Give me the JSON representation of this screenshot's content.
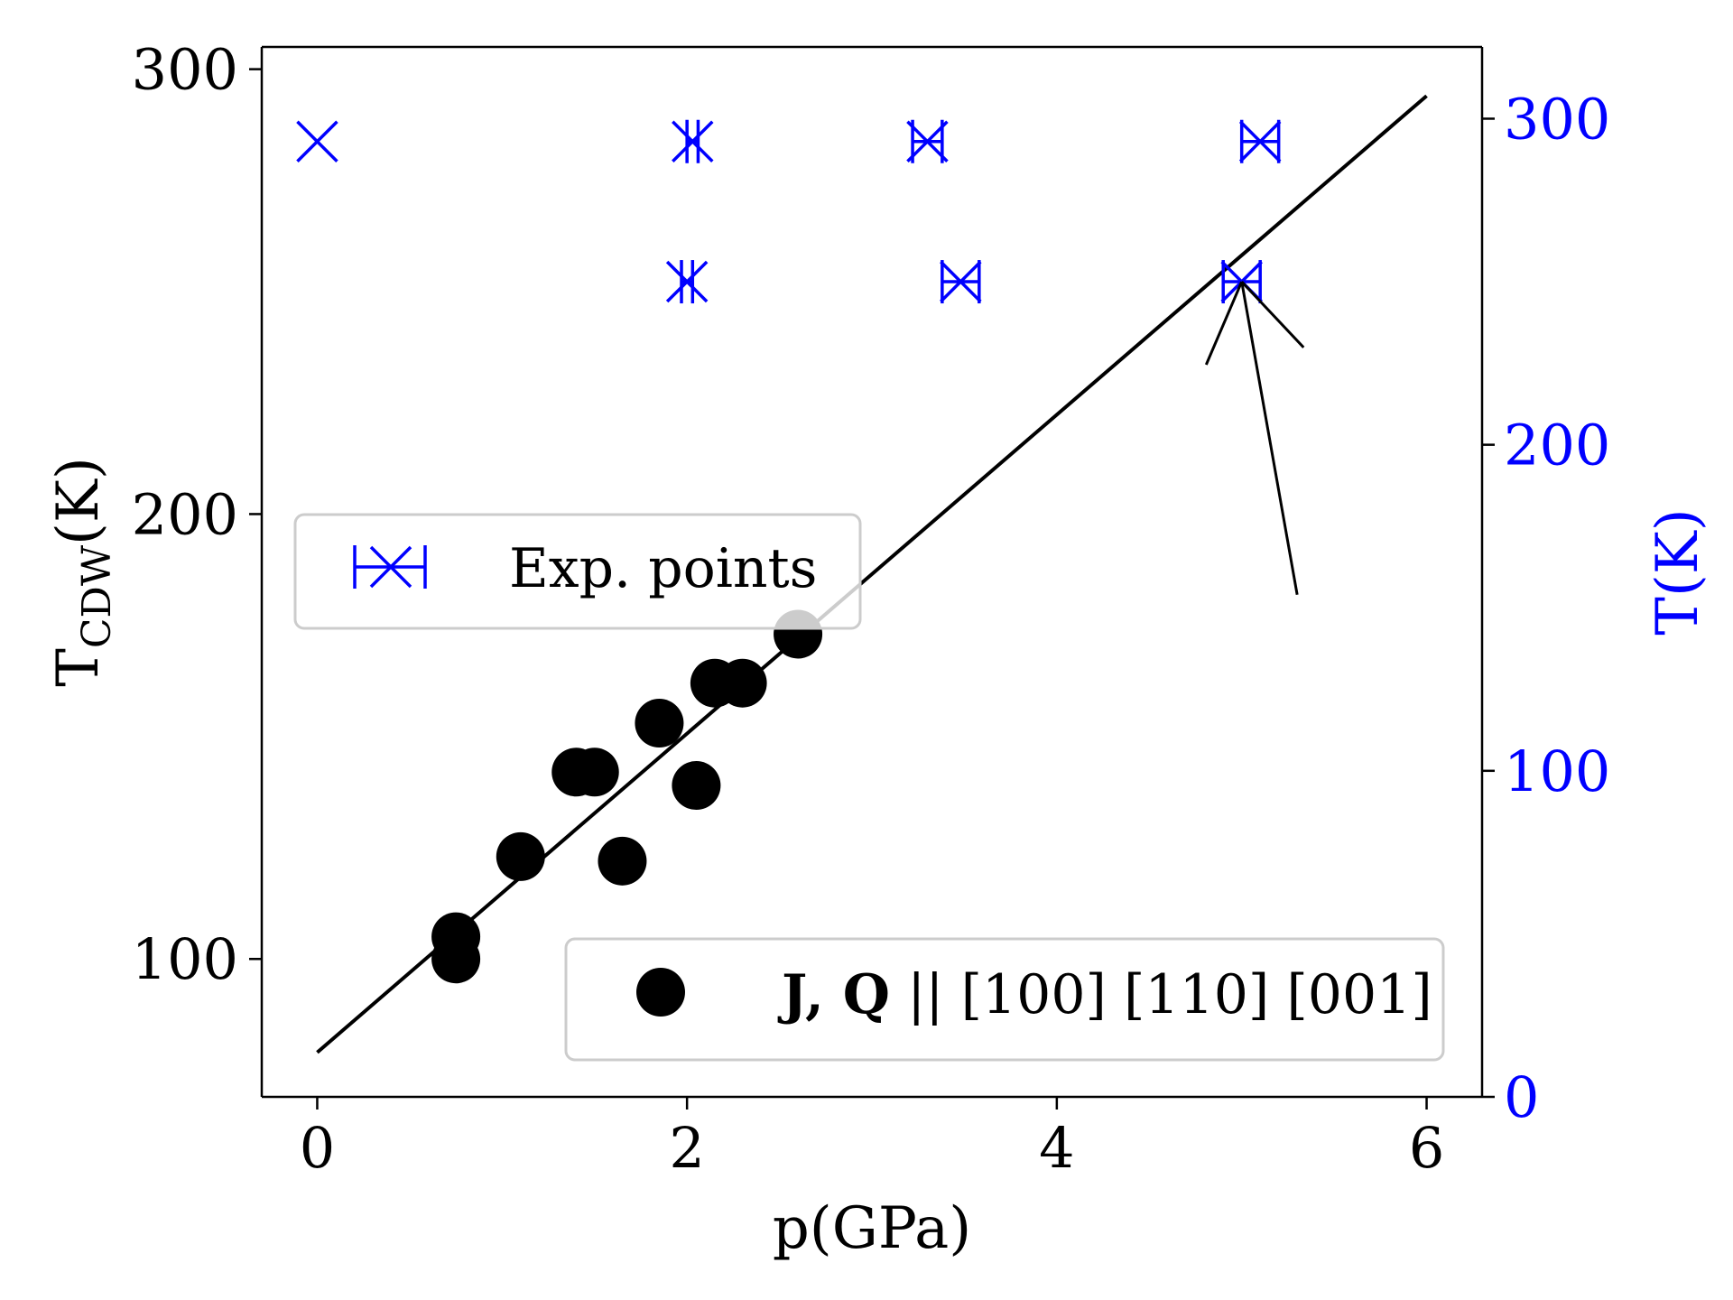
{
  "chart_data": {
    "type": "scatter",
    "x_axis": {
      "label": "p(GPa)",
      "range": [
        -0.3,
        6.3
      ],
      "ticks": [
        0,
        2,
        4,
        6
      ]
    },
    "y_axis_left": {
      "label_main": "T",
      "label_sub": "CDW",
      "label_unit": "(K)",
      "range": [
        69,
        305
      ],
      "ticks": [
        100,
        200,
        300
      ]
    },
    "y_axis_right": {
      "label": "T(K)",
      "range": [
        0,
        322
      ],
      "ticks": [
        0,
        100,
        200,
        300
      ],
      "color": "#0000ff"
    },
    "series": [
      {
        "name": "J, Q || [100] [110] [001]",
        "name_bold_part": "J, Q",
        "name_rest": " || [100] [110] [001]",
        "axis": "left",
        "color": "#000000",
        "marker": "circle",
        "points": [
          {
            "x": 0.75,
            "y": 100
          },
          {
            "x": 0.75,
            "y": 105
          },
          {
            "x": 1.1,
            "y": 123
          },
          {
            "x": 1.4,
            "y": 142
          },
          {
            "x": 1.5,
            "y": 142
          },
          {
            "x": 1.65,
            "y": 122
          },
          {
            "x": 1.85,
            "y": 153
          },
          {
            "x": 2.05,
            "y": 139
          },
          {
            "x": 2.15,
            "y": 162
          },
          {
            "x": 2.3,
            "y": 162
          },
          {
            "x": 2.6,
            "y": 173
          }
        ]
      },
      {
        "name": "Exp. points",
        "axis": "right",
        "color": "#0000ff",
        "marker": "x-errorbar",
        "points": [
          {
            "x": 0.0,
            "y": 293,
            "xerr": 0.0
          },
          {
            "x": 2.03,
            "y": 293,
            "xerr": 0.03
          },
          {
            "x": 3.3,
            "y": 293,
            "xerr": 0.08
          },
          {
            "x": 5.1,
            "y": 293,
            "xerr": 0.1
          },
          {
            "x": 2.0,
            "y": 250,
            "xerr": 0.03
          },
          {
            "x": 3.48,
            "y": 250,
            "xerr": 0.1
          },
          {
            "x": 5.0,
            "y": 250,
            "xerr": 0.1
          }
        ]
      }
    ],
    "fit_line": {
      "axis": "left",
      "color": "#000000",
      "x": [
        0,
        6
      ],
      "y": [
        79,
        294
      ]
    },
    "annotation_arrow": {
      "axis": "right",
      "from": {
        "x": 5.3,
        "y": 154
      },
      "to": {
        "x": 5.0,
        "y": 250
      }
    },
    "legends": [
      {
        "series": "Exp. points",
        "placement": "center-left"
      },
      {
        "series": "J, Q || [100] [110] [001]",
        "placement": "lower-right"
      }
    ],
    "grid": false
  }
}
